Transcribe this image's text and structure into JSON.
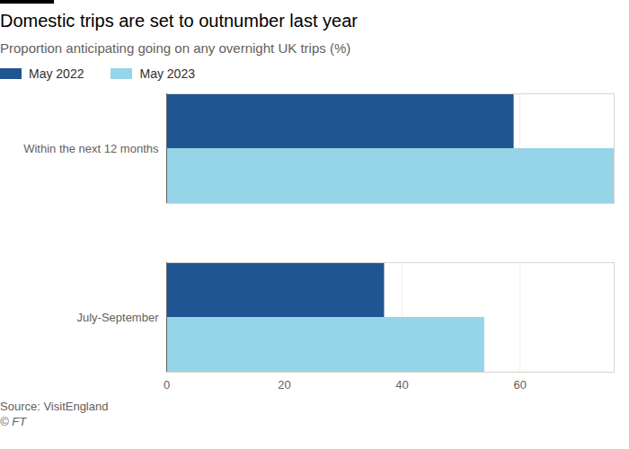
{
  "chart_data": {
    "type": "bar",
    "orientation": "horizontal",
    "title": "Domestic trips are set to outnumber last year",
    "subtitle": "Proportion anticipating going on any overnight UK trips (%)",
    "categories": [
      "Within the next 12 months",
      "July-September"
    ],
    "series": [
      {
        "name": "May 2022",
        "color": "#1f5591",
        "values": [
          59,
          37
        ]
      },
      {
        "name": "May 2023",
        "color": "#96d4e8",
        "values": [
          76,
          54
        ]
      }
    ],
    "xlim": [
      0,
      76
    ],
    "xticks": [
      0,
      20,
      40,
      60
    ],
    "grid": true,
    "legend": "top-left",
    "source": "Source: VisitEngland",
    "credit": "© FT"
  }
}
